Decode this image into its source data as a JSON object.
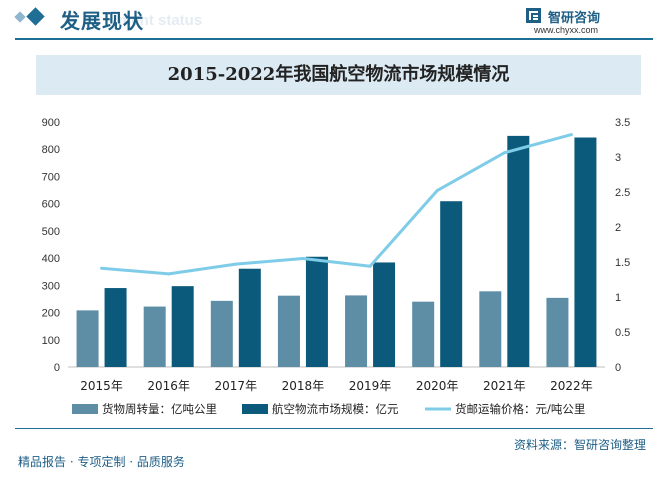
{
  "header": {
    "section_title": "发展现状",
    "section_title_en": "ment status",
    "brand_name": "智研咨询",
    "brand_url": "www.chyxx.com"
  },
  "colors": {
    "turnover": "#5d8ea6",
    "market": "#0b5a7c",
    "price": "#7fcce8",
    "accent": "#1e6e96"
  },
  "chart_data": {
    "type": "bar",
    "title": "2015-2022年我国航空物流市场规模情况",
    "categories": [
      "2015年",
      "2016年",
      "2017年",
      "2018年",
      "2019年",
      "2020年",
      "2021年",
      "2022年"
    ],
    "series": [
      {
        "name": "货物周转量：亿吨公里",
        "type": "bar",
        "axis": "left",
        "values": [
          208,
          222,
          243,
          262,
          263,
          240,
          278,
          254
        ]
      },
      {
        "name": "航空物流市场规模：亿元",
        "type": "bar",
        "axis": "left",
        "values": [
          290,
          297,
          361,
          405,
          384,
          609,
          849,
          843
        ]
      },
      {
        "name": "货邮运输价格：元/吨公里",
        "type": "line",
        "axis": "right",
        "values": [
          1.41,
          1.33,
          1.47,
          1.55,
          1.44,
          2.52,
          3.06,
          3.32
        ]
      }
    ],
    "ylim_left": [
      0,
      900
    ],
    "yticks_left": [
      "0",
      "100",
      "200",
      "300",
      "400",
      "500",
      "600",
      "700",
      "800",
      "900"
    ],
    "ylim_right": [
      0,
      3.5
    ],
    "yticks_right": [
      "0",
      "0.5",
      "1",
      "1.5",
      "2",
      "2.5",
      "3",
      "3.5"
    ],
    "legend_position": "bottom",
    "grid": false
  },
  "footer": {
    "source": "资料来源：智研咨询整理",
    "slogan": "精品报告 · 专项定制 · 品质服务"
  }
}
